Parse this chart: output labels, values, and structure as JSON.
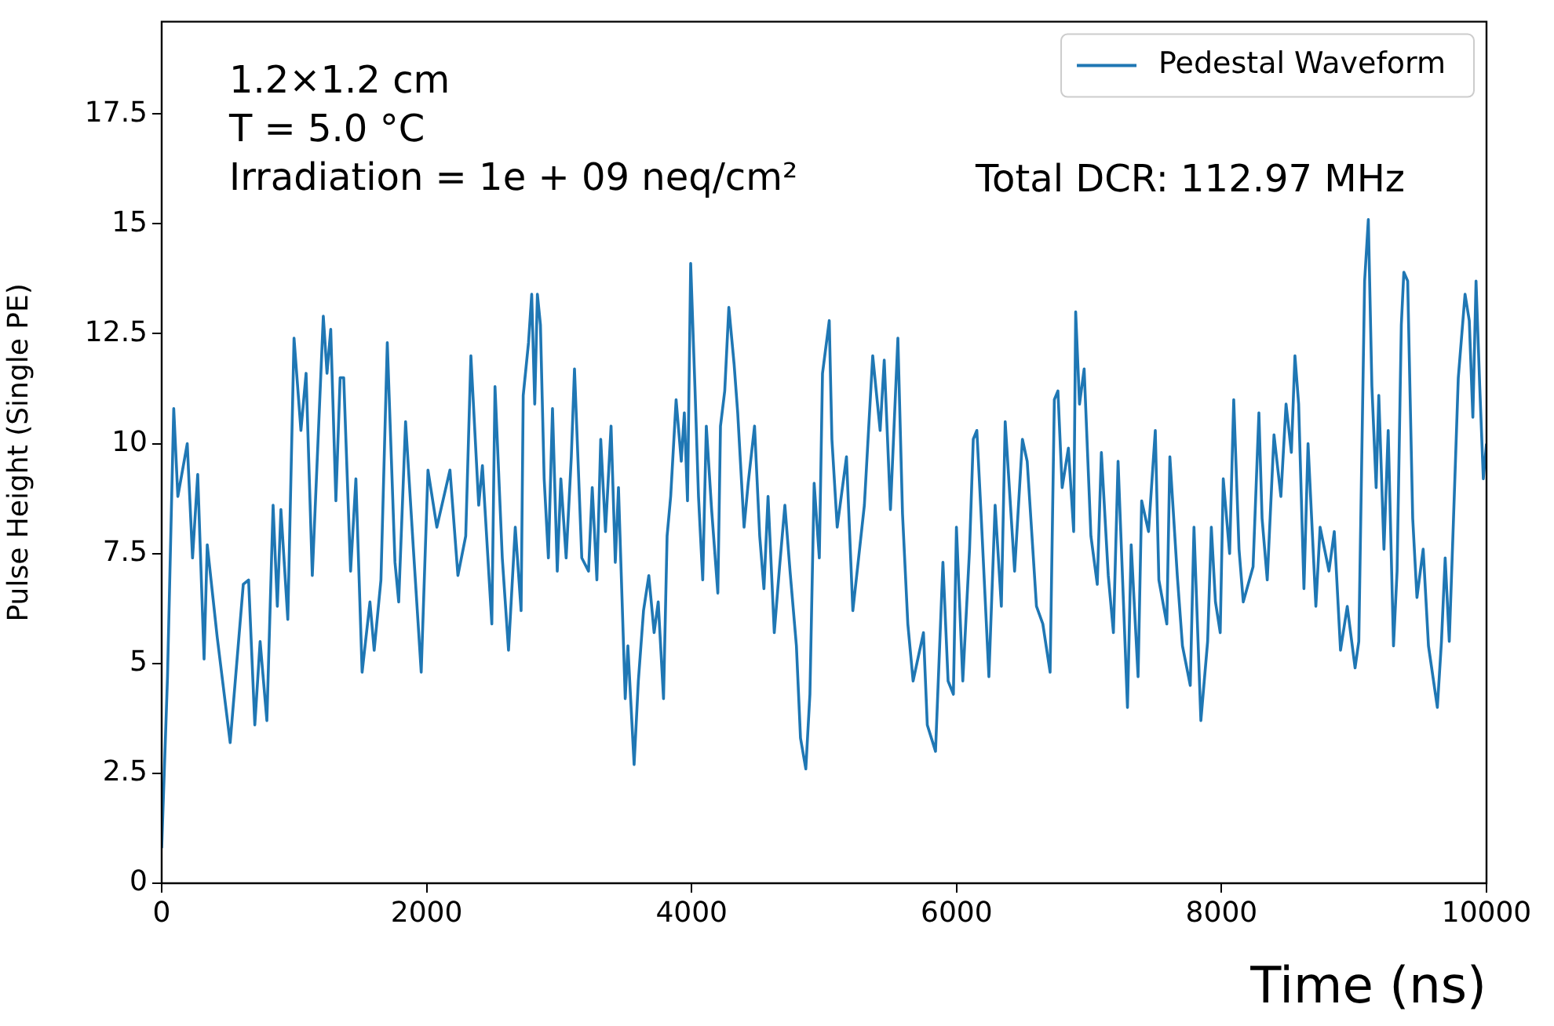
{
  "chart_data": {
    "type": "line",
    "xlabel": "Time (ns)",
    "ylabel": "Pulse Height (Single PE)",
    "annotations": [
      "1.2×1.2 cm",
      "T = 5.0 °C",
      "Irradiation = 1e + 09 neq/cm²",
      "Total DCR: 112.97 MHz"
    ],
    "xlim": [
      0,
      10000
    ],
    "xticks": [
      0,
      2000,
      4000,
      6000,
      8000,
      10000
    ],
    "ylim": [
      0,
      19.6
    ],
    "yticks": [
      0,
      2.5,
      5,
      7.5,
      10,
      12.5,
      15,
      17.5
    ],
    "grid": false,
    "legend": "top right",
    "marker": "none",
    "line_style": "solid",
    "series": [
      {
        "name": "Pedestal Waveform",
        "color": "#1f77b4",
        "x": [
          0,
          44,
          91,
          122,
          193,
          233,
          272,
          320,
          344,
          419,
          517,
          616,
          656,
          703,
          743,
          794,
          841,
          873,
          900,
          952,
          999,
          1051,
          1090,
          1137,
          1220,
          1248,
          1276,
          1315,
          1347,
          1374,
          1426,
          1466,
          1513,
          1572,
          1604,
          1655,
          1703,
          1761,
          1789,
          1841,
          1900,
          1959,
          2010,
          2077,
          2176,
          2236,
          2295,
          2334,
          2393,
          2421,
          2492,
          2516,
          2571,
          2618,
          2669,
          2713,
          2729,
          2769,
          2793,
          2816,
          2836,
          2859,
          2887,
          2919,
          2950,
          2986,
          3013,
          3053,
          3092,
          3116,
          3171,
          3222,
          3250,
          3285,
          3314,
          3350,
          3392,
          3424,
          3448,
          3499,
          3519,
          3566,
          3598,
          3637,
          3677,
          3717,
          3748,
          3788,
          3815,
          3842,
          3883,
          3922,
          3945,
          3969,
          3993,
          4025,
          4052,
          4084,
          4111,
          4151,
          4198,
          4218,
          4250,
          4281,
          4321,
          4348,
          4396,
          4427,
          4475,
          4514,
          4546,
          4577,
          4624,
          4664,
          4704,
          4743,
          4791,
          4822,
          4862,
          4893,
          4925,
          4964,
          4988,
          5039,
          5059,
          5099,
          5169,
          5217,
          5257,
          5304,
          5367,
          5423,
          5454,
          5501,
          5557,
          5592,
          5632,
          5672,
          5750,
          5779,
          5841,
          5897,
          5936,
          5976,
          5999,
          6047,
          6098,
          6126,
          6153,
          6185,
          6244,
          6291,
          6338,
          6367,
          6438,
          6497,
          6533,
          6603,
          6651,
          6706,
          6738,
          6765,
          6797,
          6844,
          6884,
          6899,
          6928,
          6963,
          7014,
          7062,
          7093,
          7145,
          7184,
          7219,
          7290,
          7318,
          7370,
          7397,
          7449,
          7500,
          7527,
          7587,
          7610,
          7666,
          7705,
          7764,
          7792,
          7844,
          7895,
          7923,
          7954,
          7990,
          8013,
          8061,
          8092,
          8132,
          8164,
          8238,
          8282,
          8306,
          8345,
          8396,
          8448,
          8487,
          8527,
          8554,
          8582,
          8622,
          8653,
          8712,
          8744,
          8811,
          8851,
          8898,
          8949,
          9008,
          9036,
          9080,
          9108,
          9135,
          9167,
          9187,
          9226,
          9258,
          9298,
          9325,
          9357,
          9376,
          9405,
          9443,
          9475,
          9522,
          9562,
          9629,
          9660,
          9688,
          9719,
          9751,
          9787,
          9838,
          9870,
          9897,
          9921,
          9949,
          9976,
          10000
        ],
        "values": [
          0.8,
          4.7,
          10.8,
          8.8,
          10.0,
          7.4,
          9.3,
          5.1,
          7.7,
          5.6,
          3.2,
          6.8,
          6.9,
          3.6,
          5.5,
          3.7,
          8.6,
          6.3,
          8.5,
          6.0,
          12.4,
          10.3,
          11.6,
          7.0,
          12.9,
          11.6,
          12.6,
          8.7,
          11.5,
          11.5,
          7.1,
          9.2,
          4.8,
          6.4,
          5.3,
          6.9,
          12.3,
          7.3,
          6.4,
          10.5,
          7.6,
          4.8,
          9.4,
          8.1,
          9.4,
          7.0,
          7.9,
          12.0,
          8.6,
          9.5,
          5.9,
          11.3,
          7.4,
          5.3,
          8.1,
          6.2,
          11.1,
          12.3,
          13.4,
          10.9,
          13.4,
          12.7,
          9.2,
          7.4,
          10.8,
          7.1,
          9.2,
          7.4,
          9.7,
          11.7,
          7.4,
          7.1,
          9.0,
          6.9,
          10.1,
          8.0,
          10.4,
          7.3,
          9.0,
          4.2,
          5.4,
          2.7,
          4.6,
          6.2,
          7.0,
          5.7,
          6.4,
          4.2,
          7.9,
          8.8,
          11.0,
          9.6,
          10.7,
          8.7,
          14.1,
          11.3,
          8.8,
          6.9,
          10.4,
          8.5,
          6.6,
          10.4,
          11.2,
          13.1,
          11.8,
          10.7,
          8.1,
          9.1,
          10.4,
          7.9,
          6.7,
          8.8,
          5.7,
          7.2,
          8.6,
          7.1,
          5.4,
          3.3,
          2.6,
          4.3,
          9.1,
          7.4,
          11.6,
          12.8,
          10.1,
          8.1,
          9.7,
          6.2,
          7.3,
          8.6,
          12.0,
          10.3,
          11.9,
          8.5,
          12.4,
          8.4,
          5.9,
          4.6,
          5.7,
          3.6,
          3.0,
          7.3,
          4.6,
          4.3,
          8.1,
          4.6,
          7.6,
          10.1,
          10.3,
          8.4,
          4.7,
          8.6,
          6.3,
          10.5,
          7.1,
          10.1,
          9.6,
          6.3,
          5.9,
          4.8,
          11.0,
          11.2,
          9.0,
          9.9,
          8.0,
          13.0,
          10.9,
          11.7,
          7.9,
          6.8,
          9.8,
          7.0,
          5.7,
          9.6,
          4.0,
          7.7,
          4.7,
          8.7,
          8.0,
          10.3,
          6.9,
          5.9,
          9.7,
          7.0,
          5.4,
          4.5,
          8.1,
          3.7,
          5.5,
          8.1,
          6.4,
          5.7,
          9.2,
          7.5,
          11.0,
          7.6,
          6.4,
          7.2,
          10.7,
          8.3,
          6.9,
          10.2,
          8.8,
          10.9,
          9.8,
          12.0,
          10.9,
          6.7,
          10.0,
          6.3,
          8.1,
          7.1,
          8.0,
          5.3,
          6.3,
          4.9,
          5.5,
          13.7,
          15.1,
          11.3,
          9.0,
          11.1,
          7.6,
          10.3,
          5.4,
          7.1,
          12.7,
          13.9,
          13.7,
          8.3,
          6.5,
          7.6,
          5.4,
          4.0,
          5.5,
          7.4,
          5.5,
          8.3,
          11.5,
          13.4,
          12.8,
          10.6,
          13.7,
          11.3,
          9.2,
          10.0
        ]
      }
    ]
  }
}
